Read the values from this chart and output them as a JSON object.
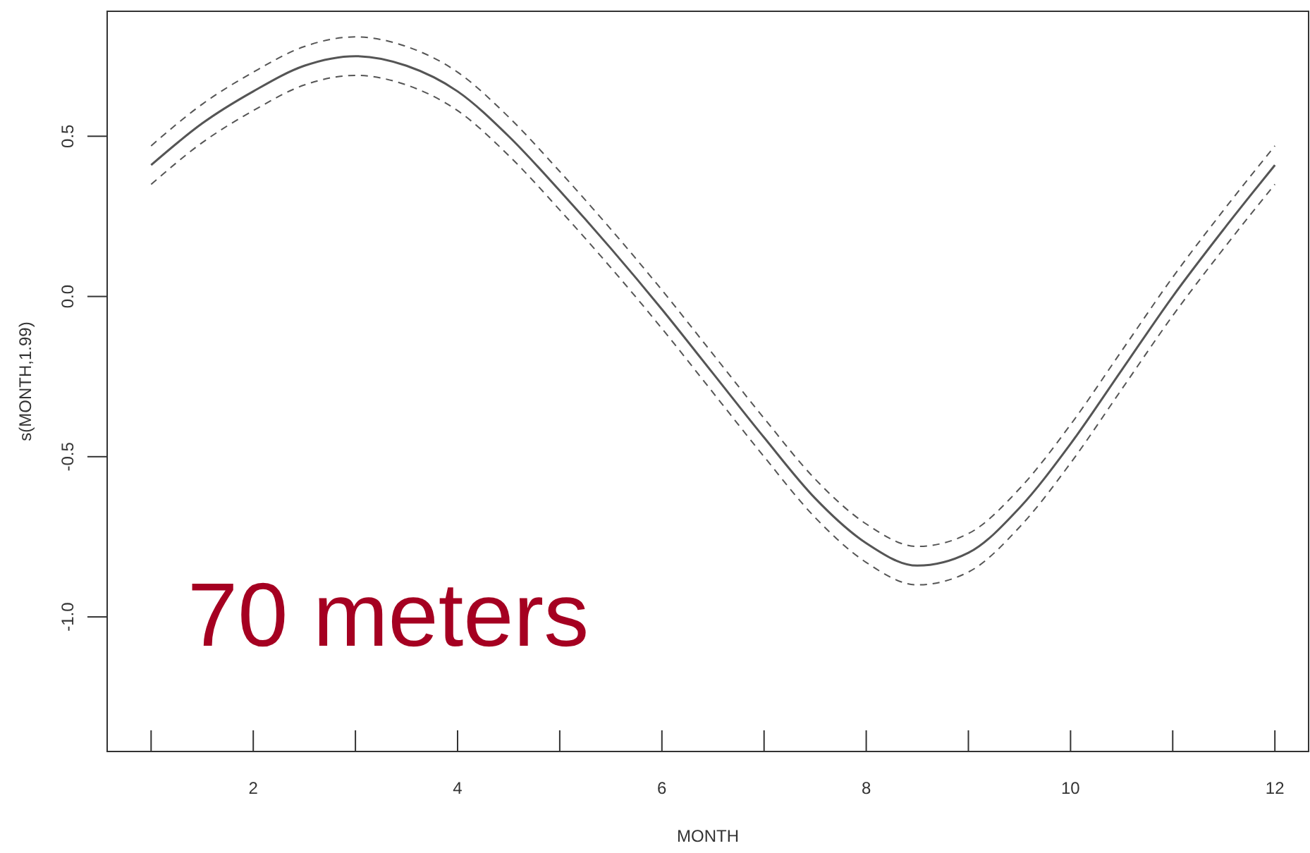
{
  "chart_data": {
    "type": "line",
    "xlabel": "MONTH",
    "ylabel": "s(MONTH,1.99)",
    "x": [
      1,
      1.5,
      2,
      2.5,
      3,
      3.5,
      4,
      4.5,
      5,
      5.5,
      6,
      6.5,
      7,
      7.5,
      8,
      8.5,
      9,
      9.5,
      10,
      10.5,
      11,
      11.5,
      12
    ],
    "series": [
      {
        "color": "#555555",
        "line_style": "solid",
        "values": [
          0.41,
          0.54,
          0.64,
          0.72,
          0.75,
          0.72,
          0.64,
          0.5,
          0.33,
          0.15,
          -0.04,
          -0.24,
          -0.44,
          -0.63,
          -0.77,
          -0.84,
          -0.8,
          -0.66,
          -0.46,
          -0.23,
          0.0,
          0.21,
          0.41
        ]
      },
      {
        "color": "#555555",
        "line_style": "dashed",
        "values": [
          0.35,
          0.48,
          0.58,
          0.66,
          0.69,
          0.66,
          0.58,
          0.44,
          0.27,
          0.09,
          -0.1,
          -0.3,
          -0.5,
          -0.69,
          -0.83,
          -0.9,
          -0.86,
          -0.72,
          -0.52,
          -0.29,
          -0.06,
          0.15,
          0.35
        ]
      },
      {
        "color": "#555555",
        "line_style": "dashed",
        "values": [
          0.47,
          0.6,
          0.7,
          0.78,
          0.81,
          0.78,
          0.7,
          0.56,
          0.39,
          0.21,
          0.02,
          -0.18,
          -0.38,
          -0.57,
          -0.71,
          -0.78,
          -0.74,
          -0.6,
          -0.4,
          -0.17,
          0.06,
          0.27,
          0.47
        ]
      }
    ],
    "xlim": [
      0.57,
      12.33
    ],
    "ylim": [
      -1.42,
      0.89
    ],
    "xticks": [
      {
        "value": 1,
        "label": null
      },
      2,
      {
        "value": 3,
        "label": null
      },
      4,
      {
        "value": 5,
        "label": null
      },
      6,
      {
        "value": 7,
        "label": null
      },
      8,
      {
        "value": 9,
        "label": null
      },
      10,
      {
        "value": 11,
        "label": null
      },
      12
    ],
    "yticks": [
      {
        "value": -1,
        "label": "-1.0"
      },
      -0.5,
      {
        "value": 0,
        "label": "0.0"
      },
      0.5
    ],
    "annotations": [
      "70 meters"
    ],
    "grid": false,
    "marker": "none"
  }
}
